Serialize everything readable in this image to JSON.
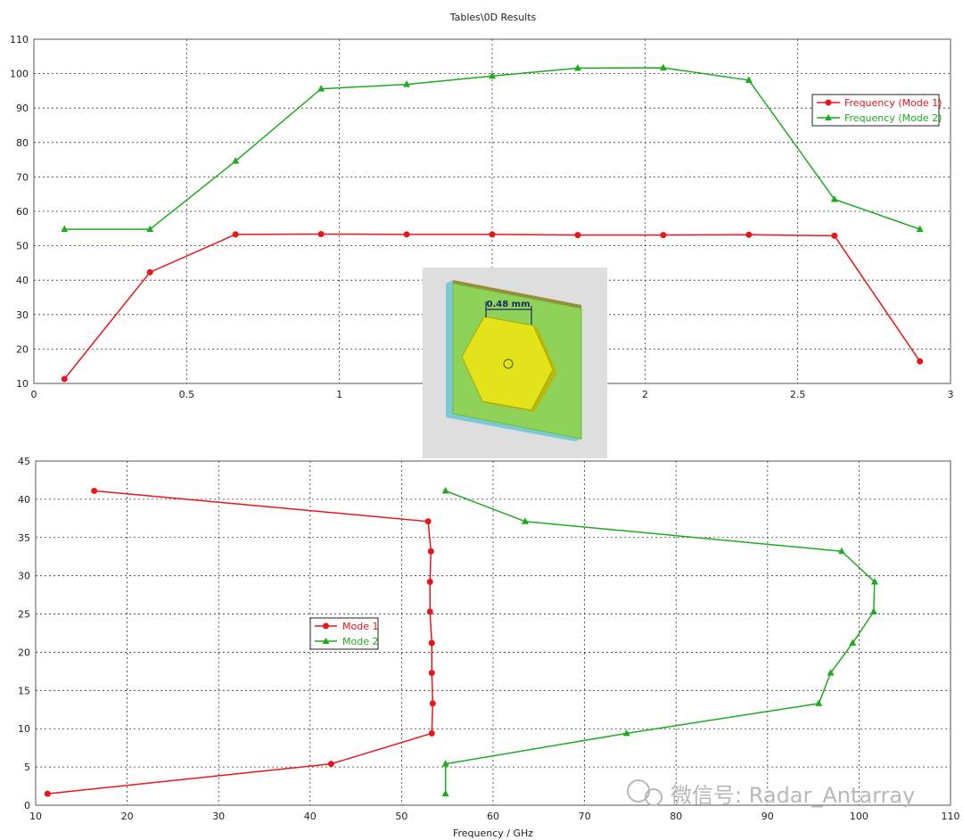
{
  "charts": [
    {
      "type": "line",
      "title": "Tables\\0D Results",
      "xlim": [
        0,
        3
      ],
      "ylim": [
        10,
        110
      ],
      "xticks": [
        0,
        0.5,
        1,
        1.5,
        2,
        2.5,
        3
      ],
      "xtick_labels": [
        "0",
        "0.5",
        "1",
        "",
        "2",
        "2.5",
        "3"
      ],
      "yticks": [
        10,
        20,
        30,
        40,
        50,
        60,
        70,
        80,
        90,
        100,
        110
      ],
      "xlabel": "",
      "ylabel": "",
      "grid": true,
      "legend_position": "top-right",
      "series": [
        {
          "name": "Frequency (Mode 1)",
          "color": "#e8161b",
          "marker": "circle",
          "x": [
            0.1,
            0.38,
            0.66,
            0.94,
            1.22,
            1.5,
            1.78,
            2.06,
            2.34,
            2.62,
            2.9
          ],
          "y": [
            11.3,
            42.3,
            53.3,
            53.4,
            53.3,
            53.3,
            53.1,
            53.1,
            53.2,
            52.9,
            16.4
          ]
        },
        {
          "name": "Frequency (Mode 2)",
          "color": "#1fab1f",
          "marker": "triangle",
          "x": [
            0.1,
            0.38,
            0.66,
            0.94,
            1.22,
            1.5,
            1.78,
            2.06,
            2.34,
            2.62,
            2.9
          ],
          "y": [
            54.8,
            54.8,
            74.6,
            95.6,
            96.9,
            99.3,
            101.6,
            101.7,
            98.1,
            63.5,
            54.8
          ]
        }
      ]
    },
    {
      "type": "line",
      "title": "",
      "xlim": [
        10,
        110
      ],
      "ylim": [
        0,
        45
      ],
      "xticks": [
        10,
        20,
        30,
        40,
        50,
        60,
        70,
        80,
        90,
        100,
        110
      ],
      "xtick_labels": [
        "10",
        "20",
        "30",
        "40",
        "50",
        "60",
        "70",
        "80",
        "90",
        "100",
        "110"
      ],
      "yticks": [
        0,
        5,
        10,
        15,
        20,
        25,
        30,
        35,
        40,
        45
      ],
      "xlabel": "Frequency / GHz",
      "ylabel": "",
      "grid": true,
      "legend_position": "center-left",
      "series": [
        {
          "name": "Mode 1",
          "color": "#e8161b",
          "marker": "circle",
          "x": [
            11.3,
            42.3,
            53.3,
            53.4,
            53.3,
            53.3,
            53.1,
            53.1,
            53.2,
            52.9,
            16.4
          ],
          "y": [
            1.5,
            5.4,
            9.4,
            13.3,
            17.3,
            21.2,
            25.3,
            29.2,
            33.2,
            37.1,
            41.1
          ]
        },
        {
          "name": "Mode 2",
          "color": "#1fab1f",
          "marker": "triangle",
          "x": [
            54.8,
            54.8,
            74.6,
            95.6,
            96.9,
            99.3,
            101.6,
            101.7,
            98.1,
            63.5,
            54.8
          ],
          "y": [
            1.5,
            5.4,
            9.4,
            13.3,
            17.3,
            21.2,
            25.3,
            29.2,
            33.2,
            37.1,
            41.1
          ]
        }
      ]
    }
  ],
  "inset": {
    "dimension_label": "0.48 mm",
    "panel_colors": {
      "background": "#dedede",
      "board": "#8ed25a",
      "board_edge": "#6bbf3a",
      "substrate_edge": "#7cc9d6",
      "patch": "#e3e31a",
      "patch_edge": "#b8b80e"
    }
  },
  "watermark": "微信号: Radar_Antarray"
}
